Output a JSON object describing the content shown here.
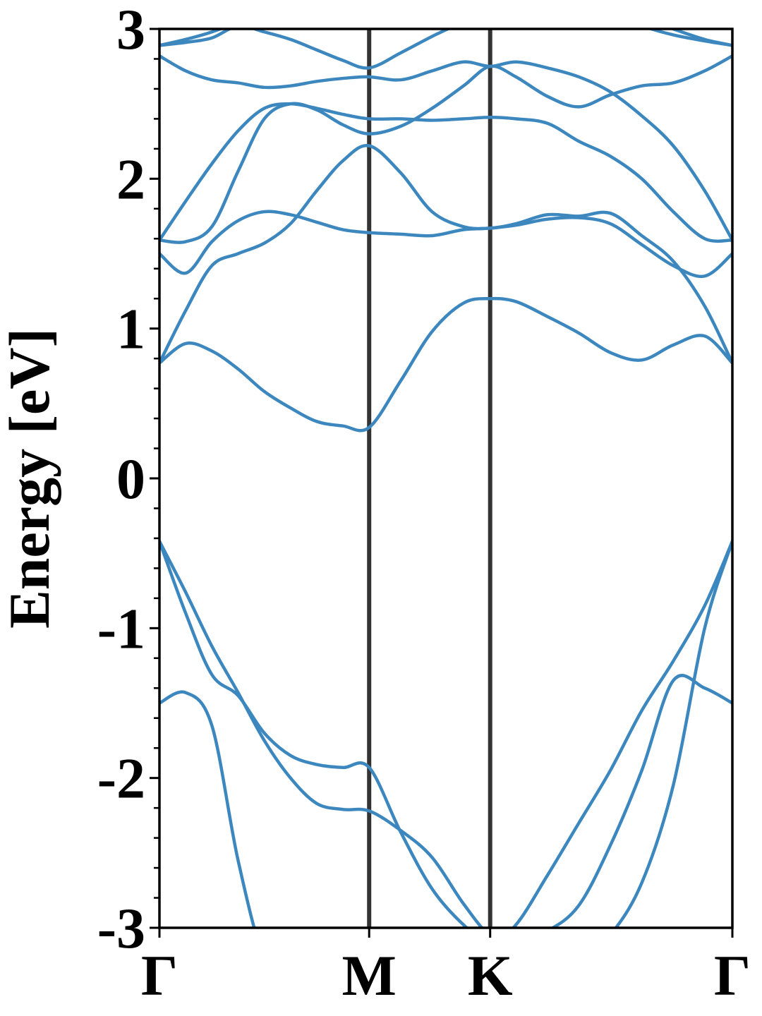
{
  "chart_data": {
    "type": "line",
    "ylabel": "Energy [eV]",
    "x": [
      0,
      0.125,
      0.25,
      0.375,
      0.5,
      0.625,
      0.75,
      0.875,
      1,
      1.15,
      1.3,
      1.45,
      1.577,
      1.7,
      1.85,
      2,
      2.15,
      2.3,
      2.45,
      2.6,
      2.732
    ],
    "xlim": [
      0,
      2.732
    ],
    "xticks": [
      {
        "value": 0,
        "label": "Γ"
      },
      {
        "value": 1,
        "label": "M"
      },
      {
        "value": 1.577,
        "label": "K"
      },
      {
        "value": 2.732,
        "label": "Γ"
      }
    ],
    "ylim": [
      -3,
      3
    ],
    "yticks": [
      -3,
      -2,
      -1,
      0,
      1,
      2,
      3
    ],
    "yminorticks": [
      -2.8,
      -2.6,
      -2.4,
      -2.2,
      -1.8,
      -1.6,
      -1.4,
      -1.2,
      -0.8,
      -0.6,
      -0.4,
      -0.2,
      0.2,
      0.4,
      0.6,
      0.8,
      1.2,
      1.4,
      1.6,
      1.8,
      2.2,
      2.4,
      2.6,
      2.8
    ],
    "vlines_color": "#333333",
    "color": "#3d87bf",
    "series": [
      {
        "values": [
          0.77,
          0.9,
          0.85,
          0.73,
          0.58,
          0.47,
          0.38,
          0.35,
          0.34,
          0.65,
          0.98,
          1.17,
          1.2,
          1.18,
          1.08,
          0.97,
          0.84,
          0.79,
          0.89,
          0.95,
          0.77
        ]
      },
      {
        "values": [
          0.77,
          1.12,
          1.42,
          1.5,
          1.57,
          1.7,
          1.92,
          2.12,
          2.22,
          2.04,
          1.78,
          1.68,
          1.67,
          1.7,
          1.76,
          1.75,
          1.77,
          1.62,
          1.45,
          1.15,
          0.77
        ]
      },
      {
        "values": [
          1.5,
          1.37,
          1.58,
          1.72,
          1.78,
          1.76,
          1.71,
          1.66,
          1.64,
          1.63,
          1.62,
          1.66,
          1.67,
          1.69,
          1.73,
          1.74,
          1.7,
          1.56,
          1.42,
          1.35,
          1.5
        ]
      },
      {
        "values": [
          1.59,
          1.58,
          1.68,
          2.05,
          2.4,
          2.5,
          2.46,
          2.36,
          2.3,
          2.35,
          2.47,
          2.62,
          2.75,
          2.68,
          2.55,
          2.48,
          2.56,
          2.62,
          2.64,
          2.72,
          2.82
        ]
      },
      {
        "values": [
          1.59,
          1.85,
          2.1,
          2.32,
          2.47,
          2.5,
          2.47,
          2.43,
          2.4,
          2.4,
          2.39,
          2.4,
          2.41,
          2.4,
          2.37,
          2.25,
          2.15,
          2.0,
          1.78,
          1.6,
          1.59
        ]
      },
      {
        "values": [
          2.82,
          2.72,
          2.66,
          2.64,
          2.61,
          2.62,
          2.65,
          2.67,
          2.68,
          2.66,
          2.72,
          2.78,
          2.75,
          2.78,
          2.74,
          2.68,
          2.58,
          2.42,
          2.22,
          1.92,
          1.59
        ]
      },
      {
        "values": [
          2.89,
          2.91,
          2.94,
          3.02,
          2.98,
          2.93,
          2.86,
          2.79,
          2.74,
          2.84,
          2.95,
          3.05,
          3.15,
          3.2,
          3.2,
          3.15,
          3.1,
          3.02,
          2.96,
          2.92,
          2.89
        ]
      },
      {
        "values": [
          2.89,
          2.93,
          2.98,
          3.05,
          3.15,
          3.2,
          3.2,
          3.2,
          3.2,
          3.2,
          3.2,
          3.2,
          3.2,
          3.2,
          3.2,
          3.2,
          3.15,
          3.08,
          3.0,
          2.93,
          2.89
        ]
      },
      {
        "values": [
          -0.42,
          -0.9,
          -1.31,
          -1.45,
          -1.7,
          -1.85,
          -1.91,
          -1.93,
          -1.93,
          -2.36,
          -2.74,
          -2.98,
          -3.1,
          -2.98,
          -2.65,
          -2.3,
          -1.95,
          -1.55,
          -1.22,
          -0.85,
          -0.42
        ]
      },
      {
        "values": [
          -0.42,
          -0.76,
          -1.12,
          -1.43,
          -1.75,
          -2.0,
          -2.17,
          -2.21,
          -2.22,
          -2.35,
          -2.53,
          -2.84,
          -3.05,
          -3.08,
          -3.02,
          -2.85,
          -2.45,
          -1.95,
          -1.35,
          -1.4,
          -1.5
        ]
      },
      {
        "values": [
          -1.5,
          -1.43,
          -1.65,
          -2.55,
          -3.2,
          -3.3,
          -3.3,
          -3.3,
          -3.3,
          -3.3,
          -3.3,
          -3.3,
          -3.3,
          -3.3,
          -3.3,
          -3.25,
          -3.05,
          -2.7,
          -2.05,
          -1.0,
          -0.42
        ]
      }
    ]
  }
}
